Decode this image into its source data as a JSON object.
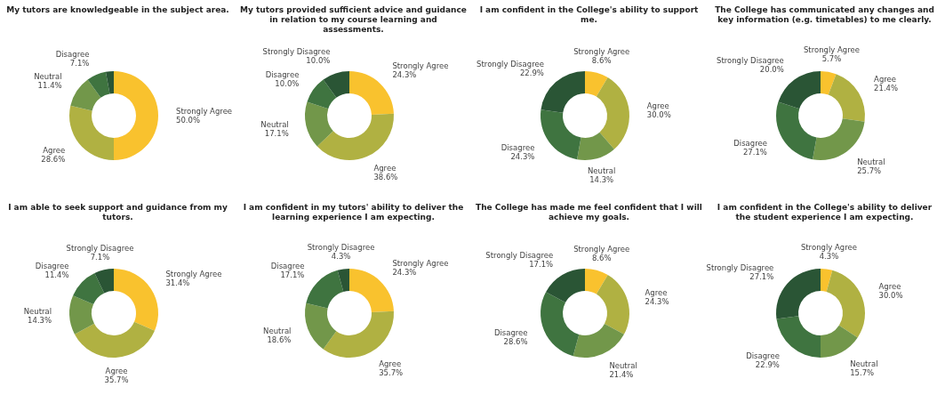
{
  "chart_data": [
    {
      "type": "donut",
      "title": "My tutors are knowledgeable in the subject area.",
      "categories": [
        "Strongly Agree",
        "Agree",
        "Neutral",
        "Disagree",
        null
      ],
      "values": [
        50.0,
        28.6,
        11.4,
        7.1,
        2.9
      ],
      "value_labels": [
        "50.0%",
        "28.6%",
        "11.4%",
        "7.1%",
        null
      ],
      "colors": [
        "#f9c22e",
        "#b0b142",
        "#72974a",
        "#3f7440",
        "#2a5535"
      ]
    },
    {
      "type": "donut",
      "title": "My tutors provided sufficient advice and guidance in relation to my course learning and assessments.",
      "categories": [
        "Strongly Agree",
        "Agree",
        "Neutral",
        "Disagree",
        "Strongly Disagree"
      ],
      "values": [
        24.3,
        38.6,
        17.1,
        10.0,
        10.0
      ],
      "value_labels": [
        "24.3%",
        "38.6%",
        "17.1%",
        "10.0%",
        "10.0%"
      ],
      "colors": [
        "#f9c22e",
        "#b0b142",
        "#72974a",
        "#3f7440",
        "#2a5535"
      ]
    },
    {
      "type": "donut",
      "title": "I am confident in the College's ability to support me.",
      "categories": [
        "Strongly Agree",
        "Agree",
        "Neutral",
        "Disagree",
        "Strongly Disagree"
      ],
      "values": [
        8.6,
        30.0,
        14.3,
        24.3,
        22.9
      ],
      "value_labels": [
        "8.6%",
        "30.0%",
        "14.3%",
        "24.3%",
        "22.9%"
      ],
      "colors": [
        "#f9c22e",
        "#b0b142",
        "#72974a",
        "#3f7440",
        "#2a5535"
      ]
    },
    {
      "type": "donut",
      "title": "The College has communicated any changes and key information (e.g. timetables) to me clearly.",
      "categories": [
        "Strongly Agree",
        "Agree",
        "Neutral",
        "Disagree",
        "Strongly Disagree"
      ],
      "values": [
        5.7,
        21.4,
        25.7,
        27.1,
        20.0
      ],
      "value_labels": [
        "5.7%",
        "21.4%",
        "25.7%",
        "27.1%",
        "20.0%"
      ],
      "colors": [
        "#f9c22e",
        "#b0b142",
        "#72974a",
        "#3f7440",
        "#2a5535"
      ]
    },
    {
      "type": "donut",
      "title": "I am able to seek support and guidance from my tutors.",
      "categories": [
        "Strongly Agree",
        "Agree",
        "Neutral",
        "Disagree",
        "Strongly Disagree"
      ],
      "values": [
        31.4,
        35.7,
        14.3,
        11.4,
        7.1
      ],
      "value_labels": [
        "31.4%",
        "35.7%",
        "14.3%",
        "11.4%",
        "7.1%"
      ],
      "colors": [
        "#f9c22e",
        "#b0b142",
        "#72974a",
        "#3f7440",
        "#2a5535"
      ]
    },
    {
      "type": "donut",
      "title": "I am confident in my tutors' ability to deliver the learning experience I am expecting.",
      "categories": [
        "Strongly Agree",
        "Agree",
        "Neutral",
        "Disagree",
        "Strongly Disagree"
      ],
      "values": [
        24.3,
        35.7,
        18.6,
        17.1,
        4.3
      ],
      "value_labels": [
        "24.3%",
        "35.7%",
        "18.6%",
        "17.1%",
        "4.3%"
      ],
      "colors": [
        "#f9c22e",
        "#b0b142",
        "#72974a",
        "#3f7440",
        "#2a5535"
      ]
    },
    {
      "type": "donut",
      "title": "The College has made me feel confident that I will achieve my goals.",
      "categories": [
        "Strongly Agree",
        "Agree",
        "Neutral",
        "Disagree",
        "Strongly Disagree"
      ],
      "values": [
        8.6,
        24.3,
        21.4,
        28.6,
        17.1
      ],
      "value_labels": [
        "8.6%",
        "24.3%",
        "21.4%",
        "28.6%",
        "17.1%"
      ],
      "colors": [
        "#f9c22e",
        "#b0b142",
        "#72974a",
        "#3f7440",
        "#2a5535"
      ]
    },
    {
      "type": "donut",
      "title": "I am confident in the College's ability to deliver the student experience I am expecting.",
      "categories": [
        "Strongly Agree",
        "Agree",
        "Neutral",
        "Disagree",
        "Strongly Disagree"
      ],
      "values": [
        4.3,
        30.0,
        15.7,
        22.9,
        27.1
      ],
      "value_labels": [
        "4.3%",
        "30.0%",
        "15.7%",
        "22.9%",
        "27.1%"
      ],
      "colors": [
        "#f9c22e",
        "#b0b142",
        "#72974a",
        "#3f7440",
        "#2a5535"
      ]
    }
  ]
}
